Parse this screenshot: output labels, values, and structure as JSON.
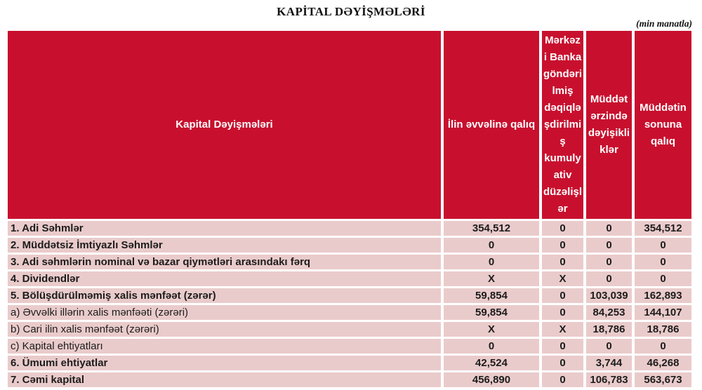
{
  "title": "KAPİTAL DƏYİŞMƏLƏRİ",
  "unit_note": "(min manatla)",
  "colors": {
    "header_bg": "#C8102E",
    "row_bg": "#EACBCB",
    "header_text": "#FFFFFF",
    "text": "#1C1C1C"
  },
  "table": {
    "columns": [
      {
        "label": "Kapital Dəyişmələri"
      },
      {
        "label": "İlin əvvəlinə qalıq"
      },
      {
        "label": "Mərkəz\ni Banka\ngöndəri\nlmiş\ndəqiqlə\nşdirilmi\nş\nkumuly\nativ\ndüzəlişl\nər",
        "full_label": "Mərkəzi Banka göndərilmiş dəqiqləşdirilmiş kumulyativ düzəlişlər"
      },
      {
        "label": "Müddət\nərzində\ndəyişikli\nklər",
        "full_label": "Müddət ərzində dəyişikliklər"
      },
      {
        "label": "Müddətin\nsonuna\nqalıq",
        "full_label": "Müddətin sonuna qalıq"
      }
    ],
    "rows": [
      {
        "label": "1. Adi Səhmlər",
        "bold": true,
        "values": [
          "354,512",
          "0",
          "0",
          "354,512"
        ]
      },
      {
        "label": "2. Müddətsiz İmtiyazlı Səhmlər",
        "bold": true,
        "values": [
          "0",
          "0",
          "0",
          "0"
        ]
      },
      {
        "label": "3. Adi səhmlərin nominal və bazar qiymətləri arasındakı fərq",
        "bold": true,
        "values": [
          "0",
          "0",
          "0",
          "0"
        ]
      },
      {
        "label": "4. Dividendlər",
        "bold": true,
        "values": [
          "X",
          "X",
          "0",
          "0"
        ]
      },
      {
        "label": "5. Bölüşdürülməmiş xalis mənfəət (zərər)",
        "bold": true,
        "values": [
          "59,854",
          "0",
          "103,039",
          "162,893"
        ]
      },
      {
        "label": "a) Əvvəlki illərin xalis mənfəəti (zərəri)",
        "bold": false,
        "values": [
          "59,854",
          "0",
          "84,253",
          "144,107"
        ]
      },
      {
        "label": "b) Cari ilin xalis mənfəət (zərəri)",
        "bold": false,
        "values": [
          "X",
          "X",
          "18,786",
          "18,786"
        ]
      },
      {
        "label": "c) Kapital ehtiyatları",
        "bold": false,
        "values": [
          "0",
          "0",
          "0",
          "0"
        ]
      },
      {
        "label": "6. Ümumi ehtiyatlar",
        "bold": true,
        "values": [
          "42,524",
          "0",
          "3,744",
          "46,268"
        ]
      },
      {
        "label": "7. Cəmi kapital",
        "bold": true,
        "values": [
          "456,890",
          "0",
          "106,783",
          "563,673"
        ]
      }
    ]
  }
}
